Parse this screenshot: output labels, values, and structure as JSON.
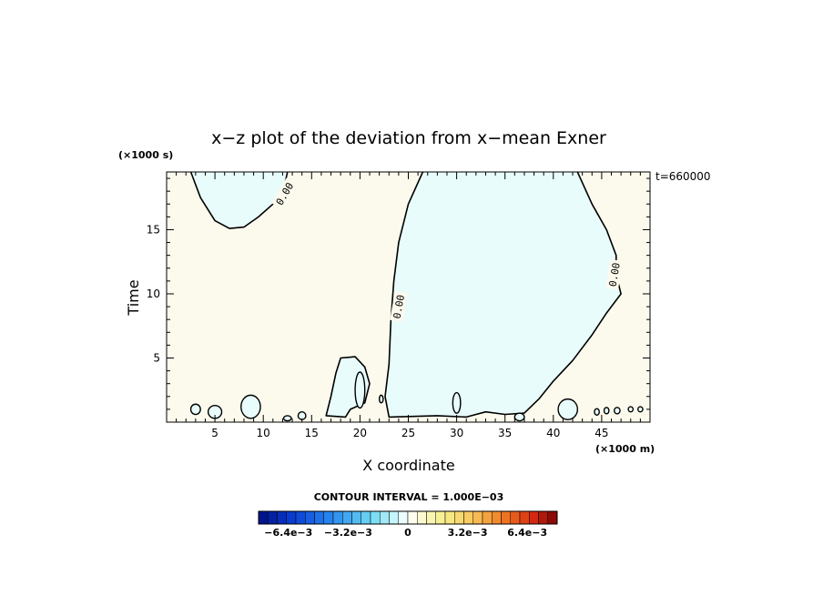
{
  "chart_data": {
    "type": "contour",
    "title": "x−z plot of the deviation from x−mean Exner",
    "xlabel": "X coordinate",
    "ylabel": "Time",
    "x_unit": "(×1000 m)",
    "y_unit": "(×1000 s)",
    "time_stamp": "t=660000",
    "xlim": [
      0,
      50
    ],
    "ylim": [
      0,
      19.5
    ],
    "x_ticks": [
      "5",
      "10",
      "15",
      "20",
      "25",
      "30",
      "35",
      "40",
      "45"
    ],
    "y_ticks": [
      "5",
      "10",
      "15"
    ],
    "contour_interval_text": "CONTOUR INTERVAL = 1.000E−03",
    "contour_label": "0.00",
    "colorbar": {
      "tick_labels": [
        "−6.4e−3",
        "−3.2e−3",
        "0",
        "3.2e−3",
        "6.4e−3"
      ],
      "tick_values": [
        -0.0064,
        -0.0032,
        0,
        0.0032,
        0.0064
      ],
      "range": [
        -0.008,
        0.008
      ],
      "n_levels": 32
    },
    "regions": [
      {
        "sign": "negative",
        "name": "top-left lobe",
        "outline": [
          [
            2.5,
            19.5
          ],
          [
            3.5,
            17.5
          ],
          [
            5,
            15.7
          ],
          [
            6.5,
            15.1
          ],
          [
            8,
            15.2
          ],
          [
            9.5,
            16
          ],
          [
            11,
            17
          ],
          [
            12,
            17.8
          ],
          [
            12.5,
            19.5
          ]
        ]
      },
      {
        "sign": "negative",
        "name": "central-right region",
        "outline": [
          [
            26.5,
            19.5
          ],
          [
            25,
            17
          ],
          [
            24,
            14
          ],
          [
            23.5,
            11
          ],
          [
            23.2,
            8
          ],
          [
            23,
            4.5
          ],
          [
            22.6,
            2
          ],
          [
            23,
            0.4
          ],
          [
            28,
            0.5
          ],
          [
            31,
            0.4
          ],
          [
            33,
            0.8
          ],
          [
            35,
            0.6
          ],
          [
            37,
            0.7
          ],
          [
            38.5,
            1.8
          ],
          [
            40,
            3.2
          ],
          [
            42,
            4.8
          ],
          [
            44,
            6.8
          ],
          [
            45.5,
            8.5
          ],
          [
            47,
            10
          ],
          [
            46.5,
            11.5
          ],
          [
            46.5,
            13
          ],
          [
            45.5,
            15
          ],
          [
            44,
            17
          ],
          [
            42.5,
            19.5
          ]
        ]
      },
      {
        "sign": "negative",
        "name": "lower-middle lobe",
        "outline": [
          [
            16.5,
            0.5
          ],
          [
            17,
            2
          ],
          [
            17.5,
            3.8
          ],
          [
            18,
            5
          ],
          [
            19.5,
            5.1
          ],
          [
            20.5,
            4.3
          ],
          [
            21,
            3
          ],
          [
            20.5,
            1.5
          ],
          [
            19,
            1
          ],
          [
            18.5,
            0.4
          ]
        ]
      }
    ],
    "colors": {
      "positive_fill": "#fcfaed",
      "negative_fill": "#e8fcfc",
      "line": "#000000"
    }
  }
}
